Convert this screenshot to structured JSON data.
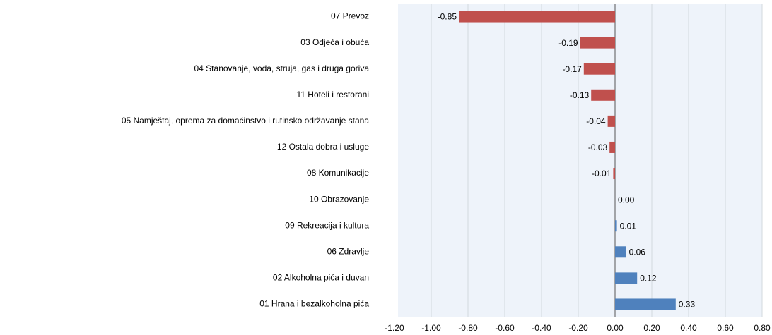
{
  "chart_data": {
    "type": "barh",
    "categories": [
      "07 Prevoz",
      "03 Odjeća i obuća",
      "04 Stanovanje, voda, struja, gas i druga goriva",
      "11 Hoteli i restorani",
      "05 Namještaj, oprema za domaćinstvo i rutinsko održavanje stana",
      "12 Ostala dobra i usluge",
      "08 Komunikacije",
      "10 Obrazovanje",
      "09 Rekreacija i kultura",
      "06 Zdravlje",
      "02 Alkoholna pića i duvan",
      "01 Hrana i bezalkoholna pića"
    ],
    "values": [
      -0.85,
      -0.19,
      -0.17,
      -0.13,
      -0.04,
      -0.03,
      -0.01,
      0.0,
      0.01,
      0.06,
      0.12,
      0.33
    ],
    "value_labels": [
      "-0.85",
      "-0.19",
      "-0.17",
      "-0.13",
      "-0.04",
      "-0.03",
      "-0.01",
      "0.00",
      "0.01",
      "0.06",
      "0.12",
      "0.33"
    ],
    "color": "#4f81bd",
    "negative_color": "#c0504d",
    "xlim": [
      -1.2,
      0.8
    ],
    "xticks": [
      {
        "value": -1.2,
        "label": "-1.20"
      },
      {
        "value": -1.0,
        "label": "-1.00"
      },
      {
        "value": -0.8,
        "label": "-0.80"
      },
      {
        "value": -0.6,
        "label": "-0.60"
      },
      {
        "value": -0.4,
        "label": "-0.40"
      },
      {
        "value": -0.2,
        "label": "-0.20"
      },
      {
        "value": 0,
        "label": "0.00"
      },
      {
        "value": 0.2,
        "label": "0.20"
      },
      {
        "value": 0.4,
        "label": "0.40"
      },
      {
        "value": 0.6,
        "label": "0.60"
      },
      {
        "value": 0.8,
        "label": "0.80"
      }
    ],
    "grid": true
  }
}
